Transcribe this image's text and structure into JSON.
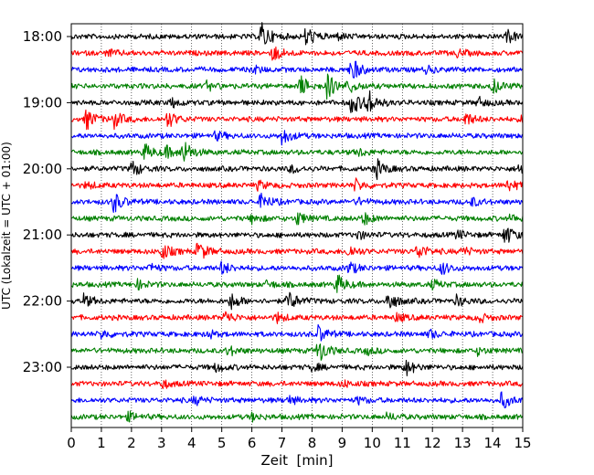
{
  "chart_data": {
    "type": "line",
    "title": "",
    "xlabel": "Zeit  [min]",
    "ylabel": "UTC (Lokalzeit = UTC + 01:00)",
    "xlim": [
      0,
      15
    ],
    "x_ticks": [
      "0",
      "1",
      "2",
      "3",
      "4",
      "5",
      "6",
      "7",
      "8",
      "9",
      "10",
      "11",
      "12",
      "13",
      "14",
      "15"
    ],
    "y_tick_labels": [
      "18:00",
      "19:00",
      "20:00",
      "21:00",
      "22:00",
      "23:00"
    ],
    "grid": "vertical dotted lines at each minute",
    "trace_colors": [
      "#000000",
      "#ff0000",
      "#0000ff",
      "#008000"
    ],
    "rows": [
      {
        "start": "18:00",
        "color": "#000000",
        "events": [
          [
            6.3,
            3.5
          ],
          [
            7.8,
            2.5
          ],
          [
            14.5,
            1.5
          ],
          [
            8.8,
            0.8
          ]
        ]
      },
      {
        "start": "18:15",
        "color": "#ff0000",
        "events": [
          [
            6.7,
            2.0
          ],
          [
            1.2,
            0.8
          ],
          [
            12.8,
            0.8
          ]
        ]
      },
      {
        "start": "18:30",
        "color": "#0000ff",
        "events": [
          [
            9.3,
            3.0
          ],
          [
            6.0,
            1.0
          ],
          [
            11.8,
            0.8
          ]
        ]
      },
      {
        "start": "18:45",
        "color": "#008000",
        "events": [
          [
            7.6,
            2.5
          ],
          [
            8.5,
            3.0
          ],
          [
            9.2,
            1.5
          ],
          [
            14.0,
            1.8
          ],
          [
            4.5,
            1.0
          ]
        ]
      },
      {
        "start": "19:00",
        "color": "#000000",
        "events": [
          [
            9.3,
            3.0
          ],
          [
            9.8,
            3.5
          ],
          [
            3.3,
            1.2
          ],
          [
            13.5,
            1.2
          ]
        ]
      },
      {
        "start": "19:15",
        "color": "#ff0000",
        "events": [
          [
            0.5,
            2.5
          ],
          [
            1.4,
            2.0
          ],
          [
            3.2,
            2.0
          ],
          [
            13.1,
            1.5
          ],
          [
            15.0,
            1.5
          ]
        ]
      },
      {
        "start": "19:30",
        "color": "#0000ff",
        "events": [
          [
            7.0,
            2.0
          ],
          [
            4.8,
            1.0
          ]
        ]
      },
      {
        "start": "19:45",
        "color": "#008000",
        "events": [
          [
            2.4,
            2.0
          ],
          [
            3.7,
            3.0
          ],
          [
            3.1,
            1.5
          ],
          [
            9.5,
            1.0
          ]
        ]
      },
      {
        "start": "20:00",
        "color": "#000000",
        "events": [
          [
            2.0,
            2.0
          ],
          [
            10.1,
            2.5
          ],
          [
            14.9,
            1.5
          ],
          [
            7.3,
            1.0
          ]
        ]
      },
      {
        "start": "20:15",
        "color": "#ff0000",
        "events": [
          [
            9.4,
            1.5
          ],
          [
            14.5,
            1.5
          ],
          [
            6.2,
            1.0
          ],
          [
            0.5,
            0.8
          ]
        ]
      },
      {
        "start": "20:30",
        "color": "#0000ff",
        "events": [
          [
            1.4,
            2.5
          ],
          [
            6.3,
            2.0
          ],
          [
            13.3,
            1.0
          ],
          [
            9.5,
            0.8
          ]
        ]
      },
      {
        "start": "20:45",
        "color": "#008000",
        "events": [
          [
            7.5,
            1.5
          ],
          [
            9.7,
            1.5
          ],
          [
            6.0,
            1.0
          ],
          [
            14.6,
            0.8
          ]
        ]
      },
      {
        "start": "21:00",
        "color": "#000000",
        "events": [
          [
            14.4,
            2.5
          ],
          [
            9.5,
            1.0
          ],
          [
            12.8,
            1.0
          ]
        ]
      },
      {
        "start": "21:15",
        "color": "#ff0000",
        "events": [
          [
            3.0,
            2.0
          ],
          [
            4.2,
            2.5
          ],
          [
            9.2,
            1.5
          ],
          [
            11.5,
            2.0
          ],
          [
            13.0,
            1.0
          ]
        ]
      },
      {
        "start": "21:30",
        "color": "#0000ff",
        "events": [
          [
            2.6,
            1.0
          ],
          [
            5.0,
            1.5
          ],
          [
            9.2,
            1.5
          ],
          [
            12.3,
            1.5
          ],
          [
            15.0,
            1.2
          ]
        ]
      },
      {
        "start": "21:45",
        "color": "#008000",
        "events": [
          [
            8.8,
            2.5
          ],
          [
            2.2,
            1.0
          ],
          [
            12.0,
            1.0
          ],
          [
            6.5,
            0.8
          ]
        ]
      },
      {
        "start": "22:00",
        "color": "#000000",
        "events": [
          [
            5.3,
            2.0
          ],
          [
            7.2,
            2.5
          ],
          [
            10.5,
            2.5
          ],
          [
            0.4,
            1.5
          ],
          [
            12.8,
            1.2
          ]
        ]
      },
      {
        "start": "22:15",
        "color": "#ff0000",
        "events": [
          [
            5.1,
            1.5
          ],
          [
            6.8,
            1.2
          ],
          [
            13.5,
            1.2
          ],
          [
            10.8,
            1.0
          ]
        ]
      },
      {
        "start": "22:30",
        "color": "#0000ff",
        "events": [
          [
            8.2,
            2.0
          ],
          [
            1.0,
            1.0
          ],
          [
            4.5,
            1.0
          ],
          [
            11.9,
            1.0
          ]
        ]
      },
      {
        "start": "22:45",
        "color": "#008000",
        "events": [
          [
            8.2,
            3.0
          ],
          [
            5.2,
            1.2
          ],
          [
            9.8,
            0.8
          ],
          [
            13.5,
            0.8
          ]
        ]
      },
      {
        "start": "23:00",
        "color": "#000000",
        "events": [
          [
            11.1,
            2.0
          ],
          [
            4.8,
            1.0
          ],
          [
            8.0,
            0.8
          ]
        ]
      },
      {
        "start": "23:15",
        "color": "#ff0000",
        "events": [
          [
            3.0,
            1.0
          ],
          [
            9.0,
            0.8
          ]
        ]
      },
      {
        "start": "23:30",
        "color": "#0000ff",
        "events": [
          [
            14.3,
            2.0
          ],
          [
            4.1,
            1.0
          ],
          [
            7.2,
            1.0
          ],
          [
            9.5,
            0.8
          ]
        ]
      },
      {
        "start": "23:45",
        "color": "#008000",
        "events": [
          [
            1.9,
            1.0
          ],
          [
            6.0,
            0.8
          ],
          [
            10.5,
            0.8
          ]
        ]
      }
    ]
  }
}
